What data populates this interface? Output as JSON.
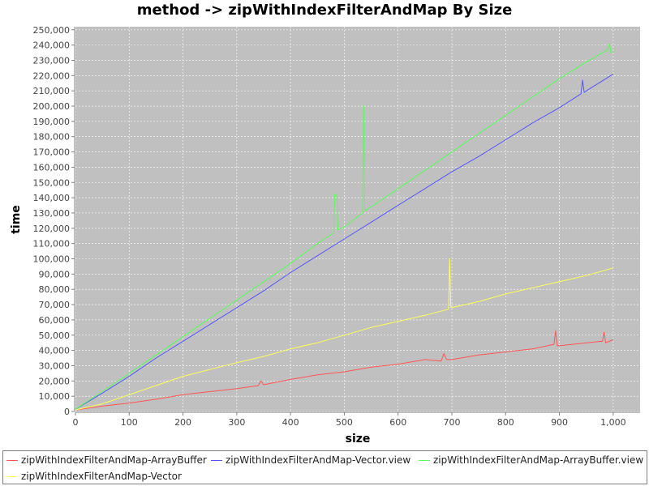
{
  "chart_data": {
    "type": "line",
    "title": "method -> zipWithIndexFilterAndMap By Size",
    "xlabel": "size",
    "ylabel": "time",
    "xlim": [
      0,
      1050
    ],
    "ylim": [
      0,
      252000
    ],
    "x_ticks": [
      0,
      100,
      200,
      300,
      400,
      500,
      600,
      700,
      800,
      900,
      1000
    ],
    "x_tick_labels": [
      "0",
      "100",
      "200",
      "300",
      "400",
      "500",
      "600",
      "700",
      "800",
      "900",
      "1,000"
    ],
    "y_ticks": [
      0,
      10000,
      20000,
      30000,
      40000,
      50000,
      60000,
      70000,
      80000,
      90000,
      100000,
      110000,
      120000,
      130000,
      140000,
      150000,
      160000,
      170000,
      180000,
      190000,
      200000,
      210000,
      220000,
      230000,
      240000,
      250000
    ],
    "y_tick_labels": [
      "0",
      "10,000",
      "20,000",
      "30,000",
      "40,000",
      "50,000",
      "60,000",
      "70,000",
      "80,000",
      "90,000",
      "100,000",
      "110,000",
      "120,000",
      "130,000",
      "140,000",
      "150,000",
      "160,000",
      "170,000",
      "180,000",
      "190,000",
      "200,000",
      "210,000",
      "220,000",
      "230,000",
      "240,000",
      "250,000"
    ],
    "grid": true,
    "legend_position": "bottom",
    "background": "#c0c0c0",
    "series": [
      {
        "name": "zipWithIndexFilterAndMap-ArrayBuffer",
        "color": "#ff5555",
        "x": [
          0,
          50,
          100,
          150,
          200,
          250,
          300,
          340,
          345,
          350,
          400,
          450,
          500,
          550,
          600,
          650,
          680,
          685,
          690,
          700,
          750,
          800,
          850,
          890,
          893,
          896,
          900,
          950,
          980,
          983,
          986,
          1000
        ],
        "y": [
          1000,
          3500,
          5500,
          8000,
          11000,
          13000,
          15000,
          17000,
          20000,
          17500,
          21000,
          24000,
          26000,
          29000,
          31000,
          34000,
          33000,
          38000,
          34000,
          34000,
          37000,
          39000,
          41000,
          44000,
          53000,
          43000,
          43000,
          45000,
          46000,
          52000,
          45000,
          47000
        ]
      },
      {
        "name": "zipWithIndexFilterAndMap-Vector.view",
        "color": "#5555ff",
        "x": [
          0,
          50,
          100,
          150,
          200,
          250,
          300,
          350,
          400,
          450,
          500,
          550,
          600,
          650,
          700,
          750,
          800,
          850,
          900,
          940,
          943,
          946,
          950,
          1000
        ],
        "y": [
          1500,
          12000,
          23000,
          35000,
          46000,
          57000,
          68000,
          79000,
          91000,
          102000,
          113000,
          124000,
          135000,
          146000,
          157000,
          167000,
          178000,
          189000,
          199000,
          208000,
          217000,
          209000,
          210000,
          221000
        ]
      },
      {
        "name": "zipWithIndexFilterAndMap-ArrayBuffer.view",
        "color": "#55ff55",
        "x": [
          0,
          50,
          100,
          150,
          200,
          250,
          300,
          350,
          400,
          450,
          480,
          482,
          486,
          488,
          500,
          534,
          536,
          538,
          540,
          550,
          600,
          650,
          700,
          750,
          800,
          850,
          900,
          950,
          990,
          993,
          996,
          1000
        ],
        "y": [
          1500,
          13000,
          25000,
          37000,
          49000,
          61000,
          73000,
          85000,
          97000,
          110000,
          117000,
          142000,
          142000,
          119000,
          121000,
          130000,
          200000,
          131000,
          132000,
          134000,
          146000,
          158000,
          170000,
          182000,
          194000,
          206000,
          218000,
          229000,
          237000,
          241000,
          235000,
          236000
        ]
      },
      {
        "name": "zipWithIndexFilterAndMap-Vector",
        "color": "#ffff55",
        "x": [
          0,
          50,
          100,
          150,
          200,
          250,
          300,
          350,
          400,
          450,
          500,
          550,
          600,
          650,
          694,
          696,
          698,
          700,
          750,
          800,
          850,
          900,
          950,
          1000
        ],
        "y": [
          1000,
          5000,
          11000,
          17000,
          23000,
          27500,
          32000,
          36000,
          41000,
          45000,
          50000,
          55000,
          59000,
          63000,
          67000,
          100000,
          68000,
          68000,
          72000,
          77000,
          81000,
          85000,
          89000,
          94000
        ]
      }
    ]
  }
}
